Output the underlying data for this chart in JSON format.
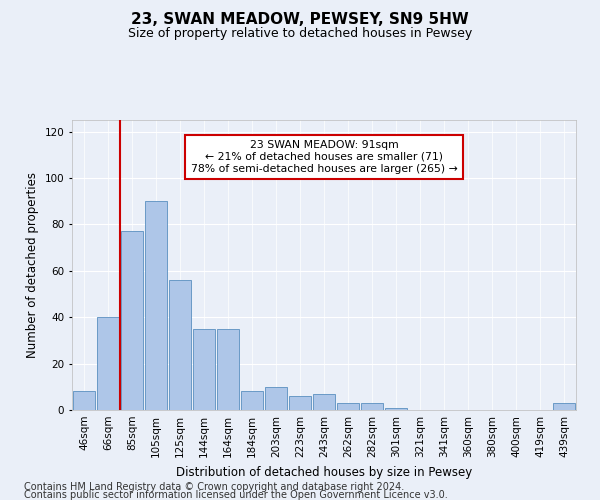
{
  "title": "23, SWAN MEADOW, PEWSEY, SN9 5HW",
  "subtitle": "Size of property relative to detached houses in Pewsey",
  "xlabel": "Distribution of detached houses by size in Pewsey",
  "ylabel": "Number of detached properties",
  "categories": [
    "46sqm",
    "66sqm",
    "85sqm",
    "105sqm",
    "125sqm",
    "144sqm",
    "164sqm",
    "184sqm",
    "203sqm",
    "223sqm",
    "243sqm",
    "262sqm",
    "282sqm",
    "301sqm",
    "321sqm",
    "341sqm",
    "360sqm",
    "380sqm",
    "400sqm",
    "419sqm",
    "439sqm"
  ],
  "values": [
    8,
    40,
    77,
    90,
    56,
    35,
    35,
    8,
    10,
    6,
    7,
    3,
    3,
    1,
    0,
    0,
    0,
    0,
    0,
    0,
    3
  ],
  "bar_color": "#aec6e8",
  "bar_edge_color": "#5a8fc0",
  "vline_x": 1.5,
  "vline_color": "#cc0000",
  "annotation_text": "23 SWAN MEADOW: 91sqm\n← 21% of detached houses are smaller (71)\n78% of semi-detached houses are larger (265) →",
  "annotation_box_color": "#ffffff",
  "annotation_box_edge": "#cc0000",
  "ylim": [
    0,
    125
  ],
  "yticks": [
    0,
    20,
    40,
    60,
    80,
    100,
    120
  ],
  "footer1": "Contains HM Land Registry data © Crown copyright and database right 2024.",
  "footer2": "Contains public sector information licensed under the Open Government Licence v3.0.",
  "bg_color": "#eaeff8",
  "plot_bg_color": "#eaeff8",
  "title_fontsize": 11,
  "subtitle_fontsize": 9,
  "axis_label_fontsize": 8.5,
  "tick_fontsize": 7.5,
  "footer_fontsize": 7
}
